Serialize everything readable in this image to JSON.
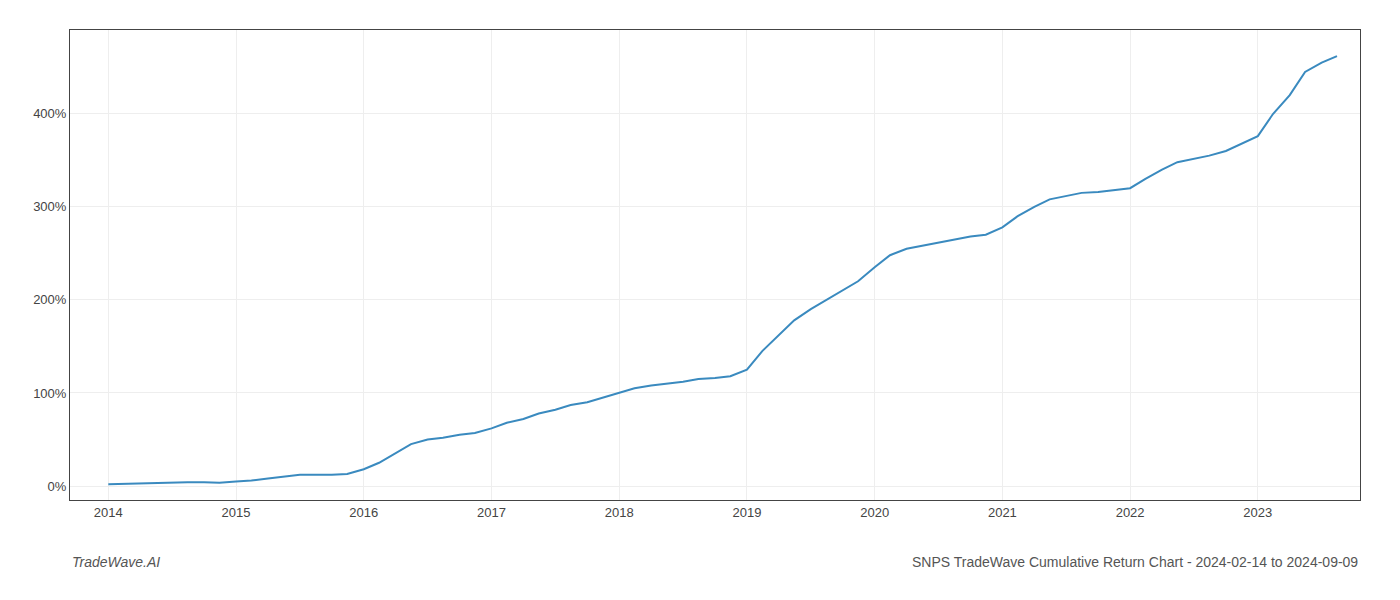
{
  "chart_data": {
    "type": "line",
    "title": "SNPS TradeWave Cumulative Return Chart - 2024-02-14 to 2024-09-09",
    "annotations": [
      "TradeWave.AI"
    ],
    "color": "#3a8abf",
    "grid": true,
    "x": [
      2014,
      2014.12,
      2014.25,
      2014.37,
      2014.5,
      2014.62,
      2014.75,
      2014.87,
      2015,
      2015.12,
      2015.25,
      2015.37,
      2015.5,
      2015.62,
      2015.75,
      2015.87,
      2016,
      2016.12,
      2016.25,
      2016.37,
      2016.5,
      2016.62,
      2016.75,
      2016.87,
      2017,
      2017.12,
      2017.25,
      2017.37,
      2017.5,
      2017.62,
      2017.75,
      2017.87,
      2018,
      2018.12,
      2018.25,
      2018.37,
      2018.5,
      2018.62,
      2018.75,
      2018.87,
      2019,
      2019.12,
      2019.25,
      2019.37,
      2019.5,
      2019.62,
      2019.75,
      2019.87,
      2020,
      2020.12,
      2020.25,
      2020.37,
      2020.5,
      2020.62,
      2020.75,
      2020.87,
      2021,
      2021.12,
      2021.25,
      2021.37,
      2021.5,
      2021.62,
      2021.75,
      2021.87,
      2022,
      2022.12,
      2022.25,
      2022.37,
      2022.5,
      2022.62,
      2022.75,
      2022.87,
      2023,
      2023.12,
      2023.25,
      2023.37,
      2023.5,
      2023.62
    ],
    "values": [
      2,
      2.5,
      3,
      3.5,
      4,
      4,
      4,
      3.5,
      5,
      6,
      8,
      10,
      12,
      12,
      12,
      13,
      18,
      25,
      35,
      45,
      50,
      52,
      55,
      57,
      62,
      68,
      72,
      78,
      82,
      87,
      90,
      95,
      100,
      105,
      108,
      110,
      112,
      115,
      116,
      118,
      125,
      145,
      162,
      178,
      190,
      200,
      210,
      220,
      235,
      248,
      255,
      258,
      262,
      265,
      268,
      270,
      278,
      290,
      300,
      308,
      312,
      315,
      316,
      318,
      320,
      330,
      340,
      348,
      352,
      355,
      360,
      368,
      376,
      400,
      420,
      445,
      455,
      462
    ],
    "xlim": [
      2013.7,
      2023.8
    ],
    "ylim": [
      -15,
      490
    ],
    "xticks": [
      2014,
      2015,
      2016,
      2017,
      2018,
      2019,
      2020,
      2021,
      2022,
      2023
    ],
    "yticks": [
      {
        "value": 0,
        "label": "0%"
      },
      {
        "value": 100,
        "label": "100%"
      },
      {
        "value": 200,
        "label": "200%"
      },
      {
        "value": 300,
        "label": "300%"
      },
      {
        "value": 400,
        "label": "400%"
      }
    ]
  }
}
